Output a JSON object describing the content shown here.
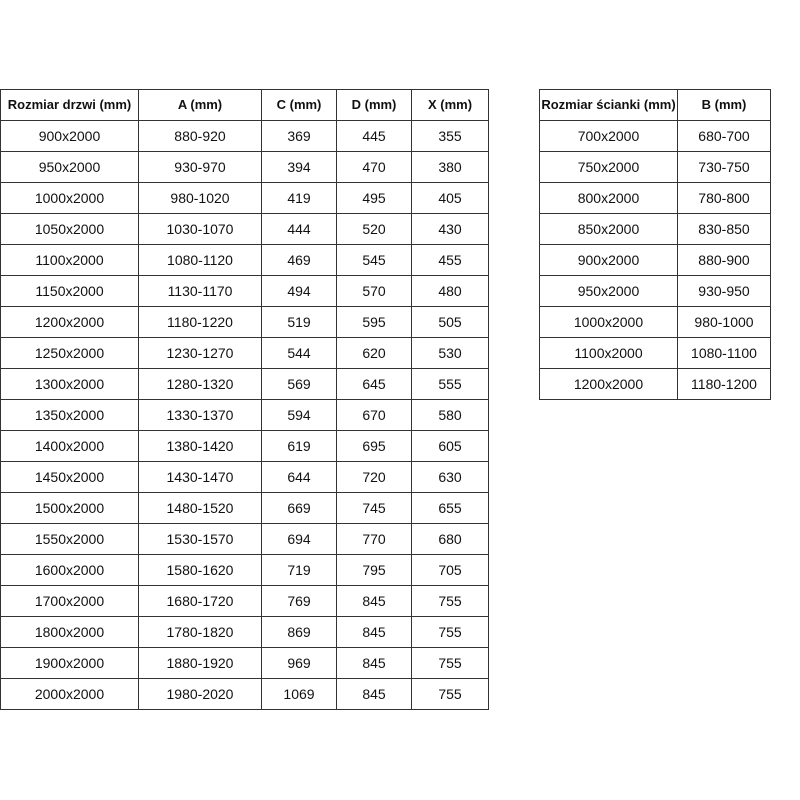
{
  "door_table": {
    "headers": [
      "Rozmiar drzwi (mm)",
      "A (mm)",
      "C (mm)",
      "D (mm)",
      "X (mm)"
    ],
    "rows": [
      [
        "900x2000",
        "880-920",
        "369",
        "445",
        "355"
      ],
      [
        "950x2000",
        "930-970",
        "394",
        "470",
        "380"
      ],
      [
        "1000x2000",
        "980-1020",
        "419",
        "495",
        "405"
      ],
      [
        "1050x2000",
        "1030-1070",
        "444",
        "520",
        "430"
      ],
      [
        "1100x2000",
        "1080-1120",
        "469",
        "545",
        "455"
      ],
      [
        "1150x2000",
        "1130-1170",
        "494",
        "570",
        "480"
      ],
      [
        "1200x2000",
        "1180-1220",
        "519",
        "595",
        "505"
      ],
      [
        "1250x2000",
        "1230-1270",
        "544",
        "620",
        "530"
      ],
      [
        "1300x2000",
        "1280-1320",
        "569",
        "645",
        "555"
      ],
      [
        "1350x2000",
        "1330-1370",
        "594",
        "670",
        "580"
      ],
      [
        "1400x2000",
        "1380-1420",
        "619",
        "695",
        "605"
      ],
      [
        "1450x2000",
        "1430-1470",
        "644",
        "720",
        "630"
      ],
      [
        "1500x2000",
        "1480-1520",
        "669",
        "745",
        "655"
      ],
      [
        "1550x2000",
        "1530-1570",
        "694",
        "770",
        "680"
      ],
      [
        "1600x2000",
        "1580-1620",
        "719",
        "795",
        "705"
      ],
      [
        "1700x2000",
        "1680-1720",
        "769",
        "845",
        "755"
      ],
      [
        "1800x2000",
        "1780-1820",
        "869",
        "845",
        "755"
      ],
      [
        "1900x2000",
        "1880-1920",
        "969",
        "845",
        "755"
      ],
      [
        "2000x2000",
        "1980-2020",
        "1069",
        "845",
        "755"
      ]
    ]
  },
  "wall_table": {
    "headers": [
      "Rozmiar ścianki (mm)",
      "B (mm)"
    ],
    "rows": [
      [
        "700x2000",
        "680-700"
      ],
      [
        "750x2000",
        "730-750"
      ],
      [
        "800x2000",
        "780-800"
      ],
      [
        "850x2000",
        "830-850"
      ],
      [
        "900x2000",
        "880-900"
      ],
      [
        "950x2000",
        "930-950"
      ],
      [
        "1000x2000",
        "980-1000"
      ],
      [
        "1100x2000",
        "1080-1100"
      ],
      [
        "1200x2000",
        "1180-1200"
      ]
    ]
  }
}
